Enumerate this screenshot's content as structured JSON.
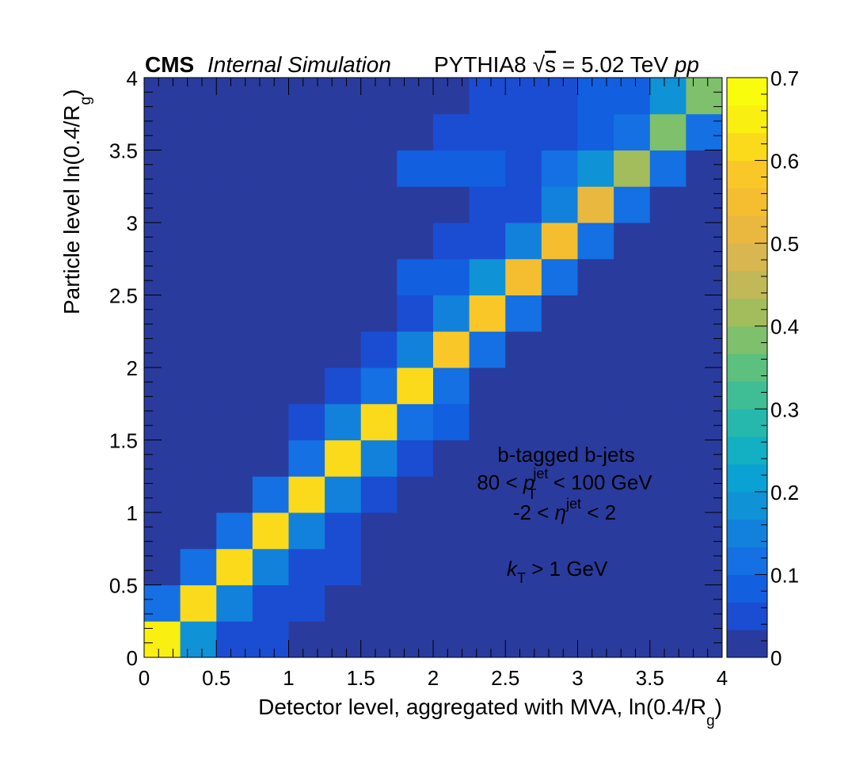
{
  "header": {
    "experiment": "CMS",
    "label": "Internal Simulation",
    "generator": "PYTHIA8",
    "sqrt_s": "s",
    "energy": " = 5.02 TeV ",
    "system": "pp"
  },
  "annotations": {
    "line1": "b-tagged b-jets",
    "line2_pre": "80 < ",
    "line2_var": "p",
    "line2_sub": "T",
    "line2_sup": "jet",
    "line2_post": " < 100 GeV",
    "line3_pre": "-2 < ",
    "line3_var": "η",
    "line3_sup": "jet",
    "line3_post": " < 2",
    "line4_var": "k",
    "line4_sub": "T",
    "line4_post": " > 1 GeV"
  },
  "chart_data": {
    "type": "heatmap",
    "xlabel": "Detector level, aggregated with MVA, ln(0.4/R",
    "xlabel_sub": "g",
    "xlabel_end": ")",
    "ylabel": "Particle level ln(0.4/R",
    "ylabel_sub": "g",
    "ylabel_end": ")",
    "xlim": [
      0,
      4
    ],
    "ylim": [
      0,
      4
    ],
    "x_edges": [
      0,
      0.25,
      0.5,
      0.75,
      1,
      1.25,
      1.5,
      1.75,
      2,
      2.25,
      2.5,
      2.75,
      3,
      3.25,
      3.5,
      3.75,
      4
    ],
    "y_edges": [
      0,
      0.25,
      0.5,
      0.75,
      1,
      1.25,
      1.5,
      1.75,
      2,
      2.25,
      2.5,
      2.75,
      3,
      3.25,
      3.5,
      3.75,
      4
    ],
    "x_ticks": [
      0,
      0.5,
      1,
      1.5,
      2,
      2.5,
      3,
      3.5,
      4
    ],
    "x_tick_labels": [
      "0",
      "0.5",
      "1",
      "1.5",
      "2",
      "2.5",
      "3",
      "3.5",
      "4"
    ],
    "y_ticks": [
      0,
      0.5,
      1,
      1.5,
      2,
      2.5,
      3,
      3.5,
      4
    ],
    "y_tick_labels": [
      "0",
      "0.5",
      "1",
      "1.5",
      "2",
      "2.5",
      "3",
      "3.5",
      "4"
    ],
    "z_range": [
      0,
      0.7
    ],
    "z_ticks": [
      0,
      0.1,
      0.2,
      0.3,
      0.4,
      0.5,
      0.6,
      0.7
    ],
    "z_tick_labels": [
      "0",
      "0.1",
      "0.2",
      "0.3",
      "0.4",
      "0.5",
      "0.6",
      "0.7"
    ],
    "colormap": [
      "#2a3b9e",
      "#1b4dd3",
      "#125fe0",
      "#1470e3",
      "#1281dc",
      "#0f92d6",
      "#09a2d2",
      "#13afc2",
      "#26b8ad",
      "#3fbd95",
      "#5cc07f",
      "#7ec06b",
      "#a3bd5d",
      "#c1b858",
      "#d8b650",
      "#e8b83f",
      "#f4be30",
      "#f9c728",
      "#fbda1c",
      "#f9ef10",
      "#fafc0e"
    ],
    "values": [
      [
        0.64,
        0.17,
        0.05,
        0.05,
        0.02,
        0.02,
        0.02,
        0.02,
        0.02,
        0.02,
        0.02,
        0.02,
        0.02,
        0.02,
        0.02,
        0.02
      ],
      [
        0.11,
        0.62,
        0.15,
        0.06,
        0.06,
        0.02,
        0.02,
        0.02,
        0.02,
        0.02,
        0.02,
        0.02,
        0.02,
        0.02,
        0.02,
        0.02
      ],
      [
        0.02,
        0.1,
        0.6,
        0.16,
        0.06,
        0.06,
        0.02,
        0.02,
        0.02,
        0.02,
        0.02,
        0.02,
        0.02,
        0.02,
        0.02,
        0.02
      ],
      [
        0.02,
        0.02,
        0.1,
        0.61,
        0.14,
        0.06,
        0.02,
        0.02,
        0.02,
        0.02,
        0.02,
        0.02,
        0.02,
        0.02,
        0.02,
        0.02
      ],
      [
        0.02,
        0.02,
        0.02,
        0.1,
        0.6,
        0.15,
        0.06,
        0.02,
        0.02,
        0.02,
        0.02,
        0.02,
        0.02,
        0.02,
        0.02,
        0.02
      ],
      [
        0.02,
        0.02,
        0.02,
        0.02,
        0.12,
        0.6,
        0.15,
        0.06,
        0.02,
        0.02,
        0.02,
        0.02,
        0.02,
        0.02,
        0.02,
        0.02
      ],
      [
        0.02,
        0.02,
        0.02,
        0.02,
        0.06,
        0.15,
        0.6,
        0.1,
        0.07,
        0.02,
        0.02,
        0.02,
        0.02,
        0.02,
        0.02,
        0.02
      ],
      [
        0.02,
        0.02,
        0.02,
        0.02,
        0.02,
        0.06,
        0.13,
        0.6,
        0.1,
        0.02,
        0.02,
        0.02,
        0.02,
        0.02,
        0.02,
        0.02
      ],
      [
        0.02,
        0.02,
        0.02,
        0.02,
        0.02,
        0.02,
        0.06,
        0.14,
        0.58,
        0.1,
        0.02,
        0.02,
        0.02,
        0.02,
        0.02,
        0.02
      ],
      [
        0.02,
        0.02,
        0.02,
        0.02,
        0.02,
        0.02,
        0.02,
        0.06,
        0.15,
        0.59,
        0.1,
        0.02,
        0.02,
        0.02,
        0.02,
        0.02
      ],
      [
        0.02,
        0.02,
        0.02,
        0.02,
        0.02,
        0.02,
        0.02,
        0.07,
        0.07,
        0.17,
        0.56,
        0.1,
        0.02,
        0.02,
        0.02,
        0.02
      ],
      [
        0.02,
        0.02,
        0.02,
        0.02,
        0.02,
        0.02,
        0.02,
        0.02,
        0.06,
        0.06,
        0.15,
        0.55,
        0.1,
        0.02,
        0.02,
        0.02
      ],
      [
        0.02,
        0.02,
        0.02,
        0.02,
        0.02,
        0.02,
        0.02,
        0.02,
        0.02,
        0.06,
        0.06,
        0.16,
        0.5,
        0.1,
        0.02,
        0.02
      ],
      [
        0.02,
        0.02,
        0.02,
        0.02,
        0.02,
        0.02,
        0.02,
        0.07,
        0.07,
        0.07,
        0.06,
        0.1,
        0.17,
        0.43,
        0.1,
        0.02
      ],
      [
        0.02,
        0.02,
        0.02,
        0.02,
        0.02,
        0.02,
        0.02,
        0.02,
        0.06,
        0.06,
        0.06,
        0.06,
        0.08,
        0.13,
        0.37,
        0.1
      ],
      [
        0.02,
        0.02,
        0.02,
        0.02,
        0.02,
        0.02,
        0.02,
        0.02,
        0.02,
        0.06,
        0.06,
        0.06,
        0.08,
        0.09,
        0.17,
        0.38
      ]
    ],
    "grid": false,
    "legend": "color bar on the right"
  }
}
